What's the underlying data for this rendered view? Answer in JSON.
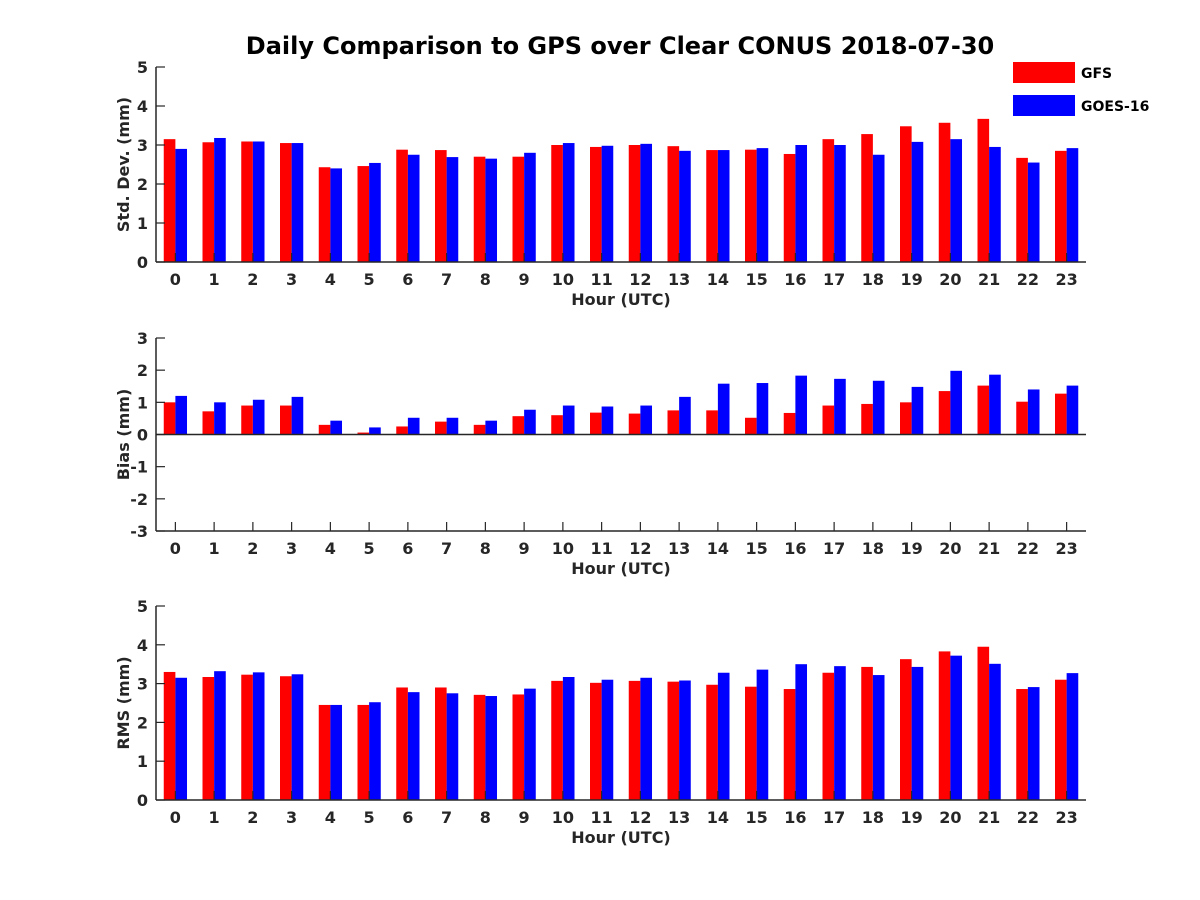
{
  "chart_data": {
    "title": "Daily Comparison to GPS over Clear CONUS 2018-07-30",
    "legend": {
      "placement": "top-right",
      "entries": [
        {
          "name": "GFS",
          "color": "#ff0000"
        },
        {
          "name": "GOES-16",
          "color": "#0000ff"
        }
      ]
    },
    "panels": [
      {
        "type": "bar",
        "ylabel": "Std. Dev. (mm)",
        "xlabel": "Hour (UTC)",
        "ylim": [
          0,
          5
        ],
        "yticks": [
          0,
          1,
          2,
          3,
          4,
          5
        ],
        "categories": [
          "0",
          "1",
          "2",
          "3",
          "4",
          "5",
          "6",
          "7",
          "8",
          "9",
          "10",
          "11",
          "12",
          "13",
          "14",
          "15",
          "16",
          "17",
          "18",
          "19",
          "20",
          "21",
          "22",
          "23"
        ],
        "series": [
          {
            "name": "GFS",
            "color": "#ff0000",
            "values": [
              3.15,
              3.07,
              3.09,
              3.05,
              2.43,
              2.46,
              2.88,
              2.87,
              2.7,
              2.7,
              3.0,
              2.95,
              3.0,
              2.97,
              2.87,
              2.88,
              2.77,
              3.15,
              3.28,
              3.48,
              3.57,
              3.67,
              2.67,
              2.85
            ]
          },
          {
            "name": "GOES-16",
            "color": "#0000ff",
            "values": [
              2.9,
              3.18,
              3.09,
              3.05,
              2.4,
              2.54,
              2.75,
              2.69,
              2.65,
              2.8,
              3.05,
              2.98,
              3.03,
              2.85,
              2.87,
              2.92,
              3.0,
              3.0,
              2.75,
              3.08,
              3.15,
              2.95,
              2.55,
              2.92
            ]
          }
        ]
      },
      {
        "type": "bar",
        "ylabel": "Bias (mm)",
        "xlabel": "Hour (UTC)",
        "ylim": [
          -3,
          3
        ],
        "yticks": [
          -3,
          -2,
          -1,
          0,
          1,
          2,
          3
        ],
        "categories": [
          "0",
          "1",
          "2",
          "3",
          "4",
          "5",
          "6",
          "7",
          "8",
          "9",
          "10",
          "11",
          "12",
          "13",
          "14",
          "15",
          "16",
          "17",
          "18",
          "19",
          "20",
          "21",
          "22",
          "23"
        ],
        "series": [
          {
            "name": "GFS",
            "color": "#ff0000",
            "values": [
              1.0,
              0.72,
              0.9,
              0.9,
              0.3,
              0.06,
              0.25,
              0.4,
              0.3,
              0.57,
              0.6,
              0.68,
              0.65,
              0.75,
              0.75,
              0.52,
              0.67,
              0.9,
              0.95,
              1.0,
              1.35,
              1.52,
              1.02,
              1.27
            ]
          },
          {
            "name": "GOES-16",
            "color": "#0000ff",
            "values": [
              1.2,
              1.0,
              1.08,
              1.17,
              0.43,
              0.22,
              0.52,
              0.52,
              0.43,
              0.77,
              0.9,
              0.87,
              0.9,
              1.17,
              1.58,
              1.6,
              1.83,
              1.73,
              1.67,
              1.48,
              1.98,
              1.86,
              1.4,
              1.52
            ]
          }
        ]
      },
      {
        "type": "bar",
        "ylabel": "RMS (mm)",
        "xlabel": "Hour (UTC)",
        "ylim": [
          0,
          5
        ],
        "yticks": [
          0,
          1,
          2,
          3,
          4,
          5
        ],
        "categories": [
          "0",
          "1",
          "2",
          "3",
          "4",
          "5",
          "6",
          "7",
          "8",
          "9",
          "10",
          "11",
          "12",
          "13",
          "14",
          "15",
          "16",
          "17",
          "18",
          "19",
          "20",
          "21",
          "22",
          "23"
        ],
        "series": [
          {
            "name": "GFS",
            "color": "#ff0000",
            "values": [
              3.3,
              3.17,
              3.23,
              3.19,
              2.45,
              2.45,
              2.9,
              2.9,
              2.71,
              2.72,
              3.07,
              3.02,
              3.07,
              3.05,
              2.97,
              2.92,
              2.86,
              3.28,
              3.43,
              3.63,
              3.83,
              3.95,
              2.86,
              3.1
            ]
          },
          {
            "name": "GOES-16",
            "color": "#0000ff",
            "values": [
              3.15,
              3.32,
              3.29,
              3.24,
              2.45,
              2.52,
              2.78,
              2.75,
              2.68,
              2.87,
              3.17,
              3.1,
              3.15,
              3.08,
              3.28,
              3.36,
              3.5,
              3.45,
              3.22,
              3.43,
              3.72,
              3.51,
              2.91,
              3.27
            ]
          }
        ]
      }
    ]
  }
}
